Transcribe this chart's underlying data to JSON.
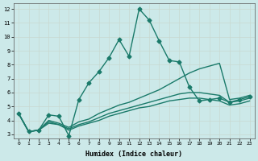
{
  "xlabel": "Humidex (Indice chaleur)",
  "ylabel": "",
  "xlim": [
    -0.5,
    23.5
  ],
  "ylim": [
    2.7,
    12.4
  ],
  "yticks": [
    3,
    4,
    5,
    6,
    7,
    8,
    9,
    10,
    11,
    12
  ],
  "xticks": [
    0,
    1,
    2,
    3,
    4,
    5,
    6,
    7,
    8,
    9,
    10,
    11,
    12,
    13,
    14,
    15,
    16,
    17,
    18,
    19,
    20,
    21,
    22,
    23
  ],
  "bg_color": "#cce9e9",
  "plot_bg": "#cce9e9",
  "line_color": "#1a7a6a",
  "grid_color": "#b8d4d4",
  "grid_minor_color": "#d4c0c0",
  "lines": [
    {
      "x": [
        0,
        1,
        2,
        3,
        4,
        5,
        6,
        7,
        8,
        9,
        10,
        11,
        12,
        13,
        14,
        15,
        16,
        17,
        18,
        19,
        20,
        21,
        22,
        23
      ],
      "y": [
        4.5,
        3.2,
        3.3,
        4.4,
        4.3,
        2.9,
        5.5,
        6.7,
        7.5,
        8.5,
        9.8,
        8.6,
        12.0,
        11.2,
        9.7,
        8.3,
        8.2,
        6.4,
        5.4,
        5.5,
        5.6,
        5.3,
        5.5,
        5.7
      ],
      "marker": "D",
      "markersize": 2.5,
      "linewidth": 1.0
    },
    {
      "x": [
        0,
        1,
        2,
        3,
        4,
        5,
        6,
        7,
        8,
        9,
        10,
        11,
        12,
        13,
        14,
        15,
        16,
        17,
        18,
        19,
        20,
        21,
        22,
        23
      ],
      "y": [
        4.5,
        3.2,
        3.3,
        4.0,
        3.8,
        3.5,
        3.9,
        4.1,
        4.5,
        4.8,
        5.1,
        5.3,
        5.6,
        5.9,
        6.2,
        6.6,
        7.0,
        7.4,
        7.7,
        7.9,
        8.1,
        5.5,
        5.6,
        5.8
      ],
      "marker": null,
      "markersize": 0,
      "linewidth": 1.0
    },
    {
      "x": [
        0,
        1,
        2,
        3,
        4,
        5,
        6,
        7,
        8,
        9,
        10,
        11,
        12,
        13,
        14,
        15,
        16,
        17,
        18,
        19,
        20,
        21,
        22,
        23
      ],
      "y": [
        4.5,
        3.2,
        3.3,
        3.9,
        3.7,
        3.4,
        3.7,
        3.9,
        4.2,
        4.5,
        4.7,
        4.9,
        5.1,
        5.3,
        5.5,
        5.7,
        5.9,
        6.0,
        6.0,
        5.9,
        5.8,
        5.3,
        5.4,
        5.6
      ],
      "marker": null,
      "markersize": 0,
      "linewidth": 1.0
    },
    {
      "x": [
        0,
        1,
        2,
        3,
        4,
        5,
        6,
        7,
        8,
        9,
        10,
        11,
        12,
        13,
        14,
        15,
        16,
        17,
        18,
        19,
        20,
        21,
        22,
        23
      ],
      "y": [
        4.5,
        3.2,
        3.3,
        3.8,
        3.7,
        3.3,
        3.6,
        3.8,
        4.0,
        4.3,
        4.5,
        4.7,
        4.9,
        5.0,
        5.2,
        5.4,
        5.5,
        5.6,
        5.6,
        5.5,
        5.4,
        5.1,
        5.2,
        5.4
      ],
      "marker": null,
      "markersize": 0,
      "linewidth": 1.0
    }
  ]
}
